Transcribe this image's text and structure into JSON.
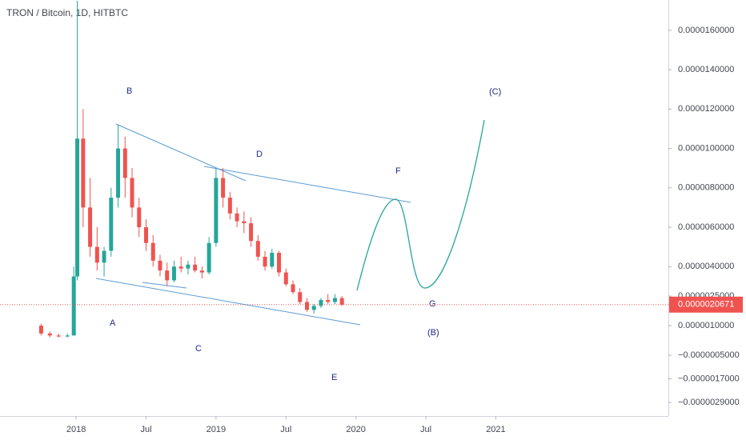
{
  "chart_data": {
    "type": "candlestick",
    "title": "TRON / Bitcoin, 1D, HITBTC",
    "up_color": "#26a69a",
    "down_color": "#ef5350",
    "x": [
      9.0,
      9.75,
      10.5,
      11.25,
      11.8,
      12.1,
      12.6,
      13.2,
      13.8,
      14.4,
      15.0,
      15.6,
      16.2,
      16.8,
      17.4,
      18.0,
      18.6,
      19.2,
      19.8,
      20.4,
      21.0,
      21.6,
      22.2,
      22.8,
      23.4,
      24.0,
      24.6,
      25.2,
      25.8,
      26.4,
      27.0,
      27.6,
      28.2,
      28.8,
      29.4,
      30.0,
      30.6,
      31.2,
      31.8,
      32.4,
      33.0,
      33.6,
      34.2,
      34.8
    ],
    "open": [
      1e-06,
      6e-07,
      5e-07,
      4.5e-07,
      5e-07,
      3.5e-06,
      1.05e-05,
      7e-06,
      5e-06,
      4.2e-06,
      4.8e-06,
      7.5e-06,
      1e-05,
      8.5e-06,
      7e-06,
      6e-06,
      5.2e-06,
      4.3e-06,
      3.8e-06,
      3.3e-06,
      4e-06,
      3.9e-06,
      4.1e-06,
      3.8e-06,
      3.7e-06,
      5.2e-06,
      8.5e-06,
      7.5e-06,
      6.7e-06,
      6.3e-06,
      6.2e-06,
      5.3e-06,
      4.5e-06,
      4e-06,
      4.7e-06,
      3.7e-06,
      3.1e-06,
      2.7e-06,
      2.2e-06,
      1.8e-06,
      2e-06,
      2.3e-06,
      2.2e-06,
      2.4e-06
    ],
    "high": [
      1.1e-06,
      7e-07,
      6e-07,
      6e-07,
      4e-06,
      1.75e-05,
      1.2e-05,
      8.5e-06,
      6e-06,
      5e-06,
      8e-06,
      1.12e-05,
      1.06e-05,
      9e-06,
      7.5e-06,
      6.4e-06,
      5.6e-06,
      4.6e-06,
      4.2e-06,
      4.3e-06,
      4.5e-06,
      4.3e-06,
      4.5e-06,
      4e-06,
      5.5e-06,
      9e-06,
      9e-06,
      7.8e-06,
      7e-06,
      6.8e-06,
      6.5e-06,
      5.6e-06,
      4.8e-06,
      4.9e-06,
      4.8e-06,
      3.9e-06,
      3.3e-06,
      2.9e-06,
      2.4e-06,
      2.1e-06,
      2.4e-06,
      2.6e-06,
      2.6e-06,
      2.5e-06
    ],
    "low": [
      5e-07,
      4e-07,
      4e-07,
      4e-07,
      5e-07,
      3.3e-06,
      6e-06,
      4.5e-06,
      3.8e-06,
      3.5e-06,
      4.5e-06,
      7e-06,
      7.5e-06,
      6.5e-06,
      5.5e-06,
      4.8e-06,
      4e-06,
      3.5e-06,
      3e-06,
      3.2e-06,
      3.7e-06,
      3.6e-06,
      3.7e-06,
      3.4e-06,
      3.6e-06,
      5e-06,
      7e-06,
      6.4e-06,
      6e-06,
      5.7e-06,
      5e-06,
      4.3e-06,
      3.8e-06,
      3.9e-06,
      3.5e-06,
      3e-06,
      2.6e-06,
      2.1e-06,
      1.7e-06,
      1.6e-06,
      1.9e-06,
      2.1e-06,
      2.1e-06,
      2e-06
    ],
    "close": [
      6e-07,
      5e-07,
      4.5e-07,
      5e-07,
      3.5e-06,
      1.05e-05,
      7e-06,
      5e-06,
      4.2e-06,
      4.8e-06,
      7.5e-06,
      1e-05,
      8.5e-06,
      7e-06,
      6e-06,
      5.2e-06,
      4.3e-06,
      3.8e-06,
      3.3e-06,
      4e-06,
      3.9e-06,
      4.1e-06,
      3.8e-06,
      3.7e-06,
      5.2e-06,
      8.5e-06,
      7.5e-06,
      6.7e-06,
      6.3e-06,
      6.2e-06,
      5.3e-06,
      4.5e-06,
      4e-06,
      4.7e-06,
      3.7e-06,
      3.1e-06,
      2.7e-06,
      2.2e-06,
      1.8e-06,
      2e-06,
      2.3e-06,
      2.2e-06,
      2.4e-06,
      2.0671e-06
    ],
    "xlim": [
      5.47,
      62.8
    ],
    "xticks": [
      {
        "value": 12,
        "label": "2018"
      },
      {
        "value": 18,
        "label": "Jul"
      },
      {
        "value": 24,
        "label": "2019"
      },
      {
        "value": 30,
        "label": "Jul"
      },
      {
        "value": 36,
        "label": "2020"
      },
      {
        "value": 42,
        "label": "Jul"
      },
      {
        "value": 48,
        "label": "2021"
      }
    ],
    "ylim": [
      -3.59e-06,
      1.754e-05
    ],
    "yticks": [
      {
        "value": 1.6e-05,
        "label": "0.0000160000"
      },
      {
        "value": 1.4e-05,
        "label": "0.0000140000"
      },
      {
        "value": 1.2e-05,
        "label": "0.0000120000"
      },
      {
        "value": 1e-05,
        "label": "0.0000100000"
      },
      {
        "value": 8e-06,
        "label": "0.0000080000"
      },
      {
        "value": 6e-06,
        "label": "0.0000060000"
      },
      {
        "value": 4e-06,
        "label": "0.0000040000"
      },
      {
        "value": 2.5e-06,
        "label": "0.0000025000"
      },
      {
        "value": 1e-06,
        "label": "0.0000010000"
      },
      {
        "value": -5e-07,
        "label": "−0.0000005000"
      },
      {
        "value": -1.7e-06,
        "label": "−0.0000017000"
      },
      {
        "value": -2.9e-06,
        "label": "−0.0000029000"
      }
    ],
    "last_price": {
      "value": 2.0671e-06,
      "label": "0.0000020671"
    },
    "annotations": [
      "B",
      "D",
      "F",
      "(C)",
      "A",
      "C",
      "E",
      "G",
      "(B)"
    ]
  }
}
